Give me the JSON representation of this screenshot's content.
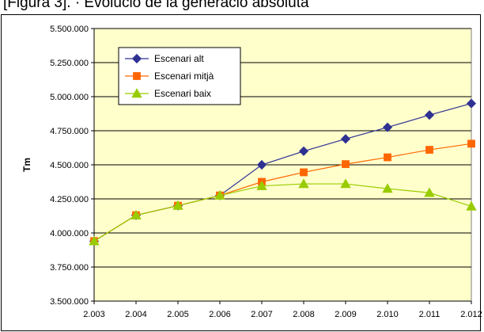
{
  "caption": "[Figura 3]. · Evolució de la generació absoluta",
  "colors": {
    "plot_background": "#ffffcc",
    "gridline": "#000000",
    "series_alt": "#2e3192",
    "series_mitja": "#ff6600",
    "series_baix": "#99cc00"
  },
  "chart_data": {
    "type": "line",
    "title": "",
    "xlabel": "",
    "ylabel": "Tm",
    "categories": [
      "2.003",
      "2.004",
      "2.005",
      "2.006",
      "2.007",
      "2.008",
      "2.009",
      "2.010",
      "2.011",
      "2.012"
    ],
    "ylim": [
      3500000,
      5500000
    ],
    "yticks": [
      3500000,
      3750000,
      4000000,
      4250000,
      4500000,
      4750000,
      5000000,
      5250000,
      5500000
    ],
    "ytick_labels": [
      "3.500.000",
      "3.750.000",
      "4.000.000",
      "4.250.000",
      "4.500.000",
      "4.750.000",
      "5.000.000",
      "5.250.000",
      "5.500.000"
    ],
    "grid": "horizontal",
    "legend_position": "top-left",
    "series": [
      {
        "name": "Escenari alt",
        "marker": "diamond",
        "color": "#2e3192",
        "values": [
          3940000,
          4130000,
          4200000,
          4275000,
          4500000,
          4600000,
          4690000,
          4775000,
          4865000,
          4950000
        ]
      },
      {
        "name": "Escenari mitjà",
        "marker": "square",
        "color": "#ff6600",
        "values": [
          3940000,
          4130000,
          4200000,
          4275000,
          4375000,
          4445000,
          4505000,
          4555000,
          4610000,
          4655000
        ]
      },
      {
        "name": "Escenari baix",
        "marker": "triangle",
        "color": "#99cc00",
        "values": [
          3940000,
          4130000,
          4200000,
          4275000,
          4345000,
          4360000,
          4360000,
          4325000,
          4295000,
          4195000
        ]
      }
    ]
  }
}
